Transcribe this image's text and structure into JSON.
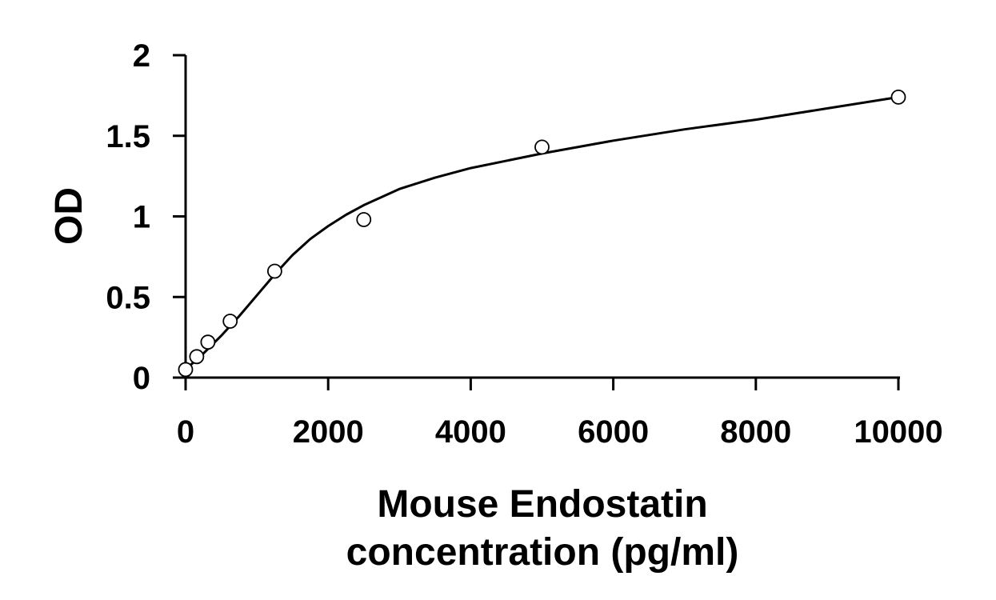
{
  "chart_data": {
    "type": "scatter",
    "title": "",
    "xlabel_lines": [
      "Mouse Endostatin",
      "concentration (pg/ml)"
    ],
    "ylabel": "OD",
    "xlim": [
      0,
      10000
    ],
    "ylim": [
      0,
      2
    ],
    "x_ticks": [
      0,
      2000,
      4000,
      6000,
      8000,
      10000
    ],
    "x_tick_labels": [
      "0",
      "2000",
      "4000",
      "6000",
      "8000",
      "10000"
    ],
    "y_ticks": [
      0,
      0.5,
      1,
      1.5,
      2
    ],
    "y_tick_labels": [
      "0",
      "0.5",
      "1",
      "1.5",
      "2"
    ],
    "grid": false,
    "legend": "none",
    "points": {
      "x": [
        0,
        156,
        313,
        625,
        1250,
        2500,
        5000,
        10000
      ],
      "y": [
        0.05,
        0.13,
        0.22,
        0.35,
        0.66,
        0.98,
        1.43,
        1.74
      ]
    },
    "fit_curve": {
      "x": [
        0,
        250,
        500,
        750,
        1000,
        1250,
        1500,
        1750,
        2000,
        2250,
        2500,
        3000,
        3500,
        4000,
        5000,
        6000,
        7000,
        8000,
        9000,
        10000
      ],
      "y": [
        0.05,
        0.15,
        0.26,
        0.38,
        0.51,
        0.64,
        0.76,
        0.86,
        0.94,
        1.01,
        1.07,
        1.17,
        1.24,
        1.3,
        1.39,
        1.47,
        1.54,
        1.6,
        1.67,
        1.74
      ]
    },
    "colors": {
      "axis": "#000000",
      "curve": "#000000",
      "marker_stroke": "#000000",
      "marker_fill": "#ffffff"
    }
  }
}
